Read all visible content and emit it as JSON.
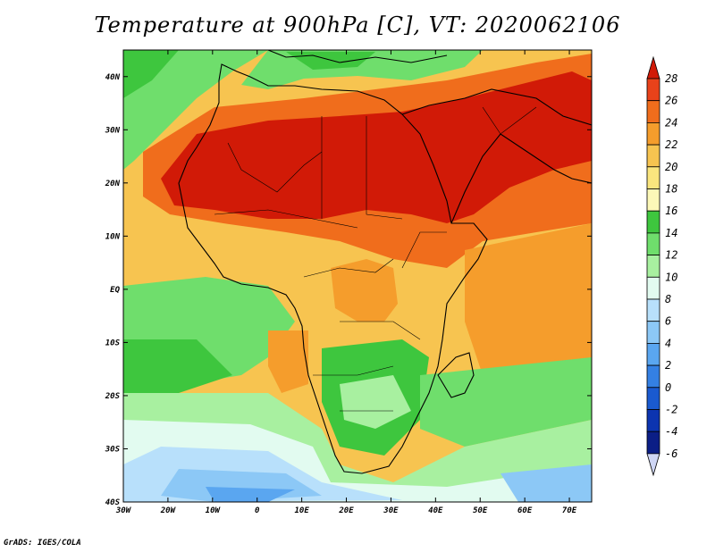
{
  "title": "Temperature at 900hPa [C], VT: 2020062106",
  "credit": "GrADS: IGES/COLA",
  "axes": {
    "lon_labels": [
      "30W",
      "20W",
      "10W",
      "0",
      "10E",
      "20E",
      "30E",
      "40E",
      "50E",
      "60E",
      "70E"
    ],
    "lat_labels": [
      "40N",
      "30N",
      "20N",
      "10N",
      "EQ",
      "10S",
      "20S",
      "30S",
      "40S"
    ],
    "lon_range": [
      -30,
      75
    ],
    "lat_range": [
      -40,
      45
    ]
  },
  "colorbar": {
    "labels": [
      "28",
      "26",
      "24",
      "22",
      "20",
      "18",
      "16",
      "14",
      "12",
      "10",
      "8",
      "6",
      "4",
      "2",
      "0",
      "-2",
      "-4",
      "-6"
    ],
    "colors": [
      "#d11a07",
      "#e8421a",
      "#f06d1c",
      "#f59d2c",
      "#f7c450",
      "#fae57e",
      "#fcf8b8",
      "#3ec63e",
      "#6fde6c",
      "#a8f0a0",
      "#e2fbf0",
      "#b8e0fb",
      "#8cc8f6",
      "#5aa6f0",
      "#3480e3",
      "#1a5ad0",
      "#0c34b0",
      "#0b1e86",
      "#cfd6f5"
    ]
  },
  "colors": {
    "hot": "#d11a07",
    "warm": "#f06d1c",
    "mild": "#f59d2c",
    "yellow": "#fae57e",
    "green": "#3ec63e",
    "lightgreen": "#a8f0a0",
    "pale": "#e2fbf0",
    "cool": "#8cc8f6",
    "cold": "#5aa6f0"
  }
}
